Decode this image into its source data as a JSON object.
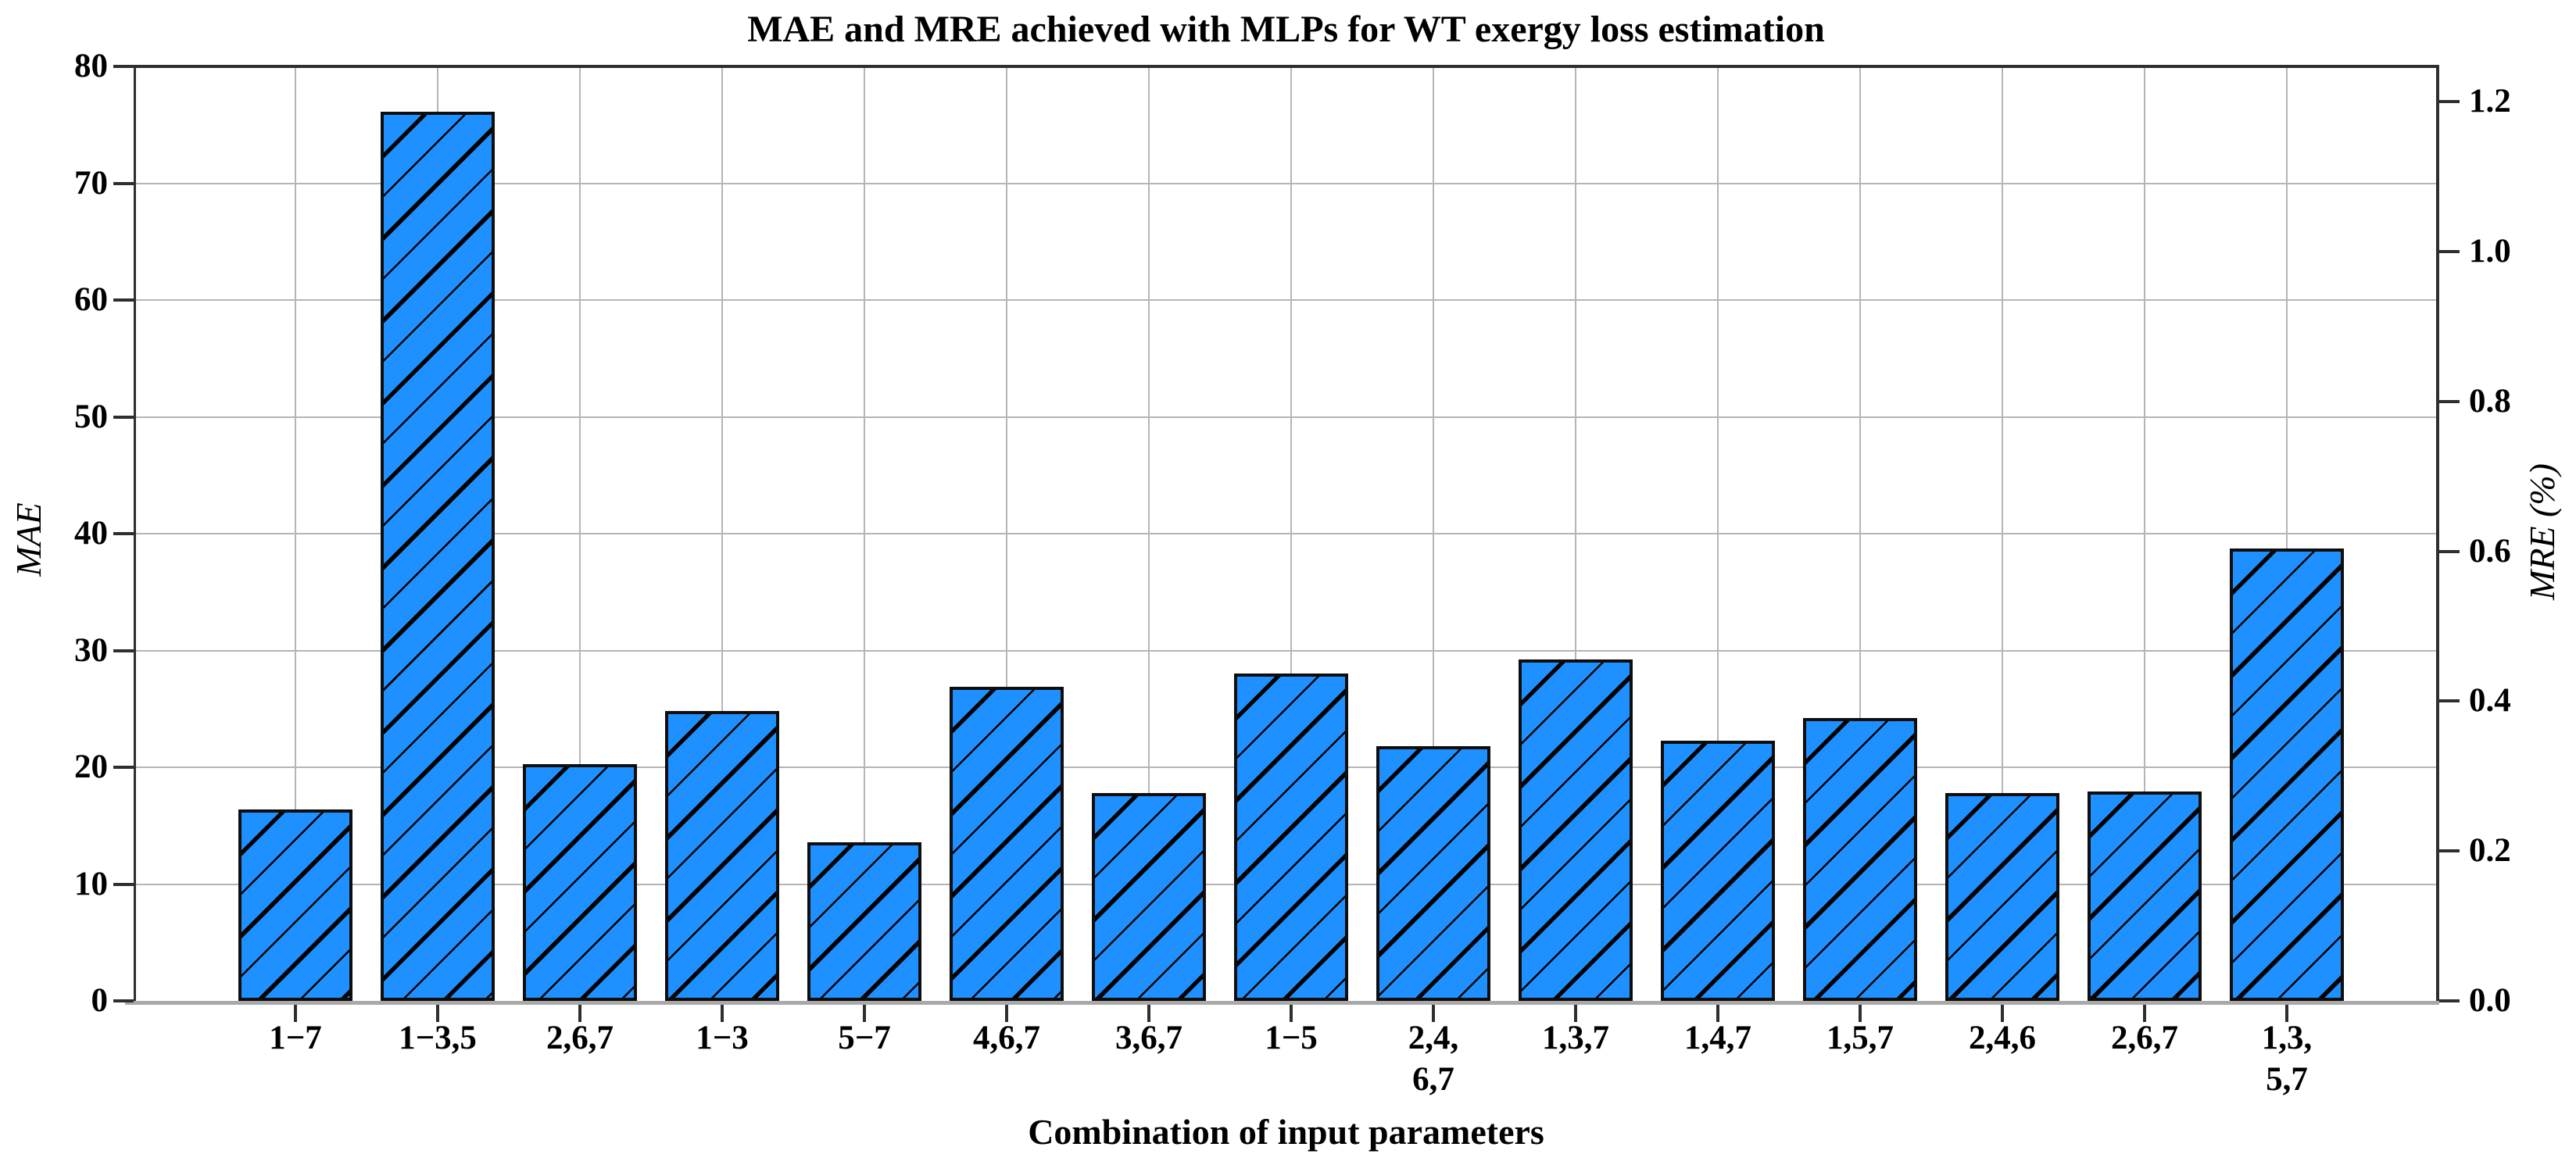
{
  "title": "MAE and MRE achieved with MLPs for WT exergy loss estimation",
  "axes": {
    "left_label": "MAE",
    "right_label": "MRE (%)",
    "x_label": "Combination of input parameters",
    "left_ticks": [
      "0",
      "10",
      "20",
      "30",
      "40",
      "50",
      "60",
      "70",
      "80"
    ],
    "right_ticks": [
      "0.0",
      "0.2",
      "0.4",
      "0.6",
      "0.8",
      "1.0",
      "1.2"
    ]
  },
  "colors": {
    "bar_fill": "#1E90FF",
    "bar_edge": "#000000",
    "grid": "#b5b5b5",
    "spine": "#2e2e2e",
    "baseline": "#a9a9a9",
    "text": "#000000"
  },
  "chart_data": {
    "type": "bar",
    "title": "MAE and MRE achieved with MLPs for WT exergy loss estimation",
    "xlabel": "Combination of input parameters",
    "ylabel_left": "MAE",
    "ylabel_right": "MRE (%)",
    "categories": [
      "1−7",
      "1−3,5",
      "2,6,7",
      "1−3",
      "5−7",
      "4,6,7",
      "3,6,7",
      "1−5",
      "2,4,6,7",
      "1,3,7",
      "1,4,7",
      "1,5,7",
      "2,4,6",
      "2,6,7",
      "1,3,5,7"
    ],
    "series": [
      {
        "name": "MAE",
        "axis": "left",
        "values": [
          16.4,
          76.1,
          20.3,
          24.8,
          13.6,
          26.9,
          17.8,
          28.0,
          21.8,
          29.2,
          22.3,
          24.2,
          17.8,
          17.9,
          38.7
        ]
      },
      {
        "name": "MRE (%)",
        "axis": "right",
        "values": [
          0.26,
          1.19,
          0.32,
          0.39,
          0.21,
          0.42,
          0.28,
          0.44,
          0.34,
          0.46,
          0.35,
          0.38,
          0.28,
          0.28,
          0.6
        ]
      }
    ],
    "x_tick_lines": [
      [
        "1−7"
      ],
      [
        "1−3,5"
      ],
      [
        "2,6,7"
      ],
      [
        "1−3"
      ],
      [
        "5−7"
      ],
      [
        "4,6,7"
      ],
      [
        "3,6,7"
      ],
      [
        "1−5"
      ],
      [
        "2,4,",
        "6,7"
      ],
      [
        "1,3,7"
      ],
      [
        "1,4,7"
      ],
      [
        "1,5,7"
      ],
      [
        "2,4,6"
      ],
      [
        "2,6,7"
      ],
      [
        "1,3,",
        "5,7"
      ]
    ],
    "ylim_left": [
      0,
      80
    ],
    "ylim_right": [
      0,
      1.25
    ],
    "yticks_left": [
      0,
      10,
      20,
      30,
      40,
      50,
      60,
      70,
      80
    ],
    "yticks_right": [
      0.0,
      0.2,
      0.4,
      0.6,
      0.8,
      1.0,
      1.2
    ],
    "grid": true,
    "legend": "none",
    "bar_color": "#1E90FF",
    "bar_edge_color": "#000000",
    "hatch": "/",
    "note": "Single hatched bar series read against both axes (twin y-axes share the bars)."
  }
}
